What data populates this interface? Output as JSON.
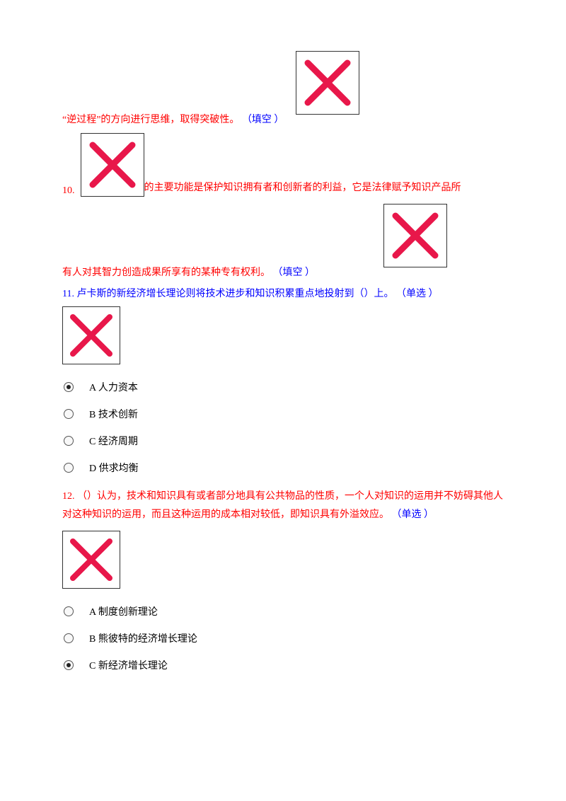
{
  "colors": {
    "red": "#ff0000",
    "blue": "#0000ff",
    "x_stroke": "#e8174a",
    "box_border": "#333333",
    "background": "#ffffff"
  },
  "xbox_sizes": {
    "large_w": 88,
    "large_h": 88,
    "large_stroke": 9,
    "med_w": 80,
    "med_h": 80,
    "med_stroke": 8
  },
  "q9": {
    "text_red": "“逆过程”的方向进行思维，取得突破性。",
    "type_blue": "（填空 ）"
  },
  "q10": {
    "num": "10.",
    "text_red_1": "的主要功能是保护知识拥有者和创新者的利益，它是法律赋予知识产品所",
    "text_red_2": "有人对其智力创造成果所享有的某种专有权利。",
    "type_blue": "（填空 ）"
  },
  "q11": {
    "num": "11.",
    "text_blue": "卢卡斯的新经济增长理论则将技术进步和知识积累重点地投射到（）上。",
    "type_blue": "（单选 ）",
    "options": [
      {
        "label": "A 人力资本",
        "selected": true
      },
      {
        "label": "B 技术创新",
        "selected": false
      },
      {
        "label": "C 经济周期",
        "selected": false
      },
      {
        "label": "D 供求均衡",
        "selected": false
      }
    ]
  },
  "q12": {
    "num": "12.",
    "text_red": "（）认为，技术和知识具有或者部分地具有公共物品的性质，一个人对知识的运用并不妨碍其他人对这种知识的运用，而且这种运用的成本相对较低，即知识具有外溢效应。",
    "type_blue": "（单选 ）",
    "options": [
      {
        "label": "A 制度创新理论",
        "selected": false
      },
      {
        "label": "B 熊彼特的经济增长理论",
        "selected": false
      },
      {
        "label": "C 新经济增长理论",
        "selected": true
      }
    ]
  }
}
